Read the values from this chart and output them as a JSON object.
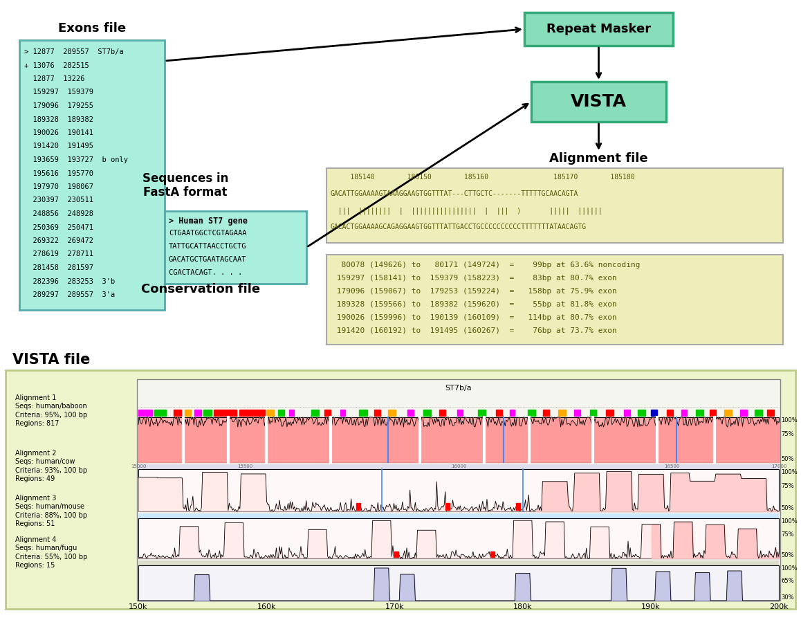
{
  "exons_title": "Exons file",
  "exons_box_color": "#aaeedd",
  "exons_lines": [
    "> 12877  289557  ST7b/a",
    "+ 13076  282515",
    "  12877  13226",
    "  159297  159379",
    "  179096  179255",
    "  189328  189382",
    "  190026  190141",
    "  191420  191495",
    "  193659  193727  b only",
    "  195616  195770",
    "  197970  198067",
    "  230397  230511",
    "  248856  248928",
    "  250369  250471",
    "  269322  269472",
    "  278619  278711",
    "  281458  281597",
    "  282396  283253  3'b",
    "  289297  289557  3'a"
  ],
  "fasta_label": "Sequences in\nFastA format",
  "fasta_box_color": "#aaeedd",
  "fasta_lines": [
    "> Human ST7 gene",
    "CTGAATGGCTCGTAGAAA",
    "TATTGCATTAACCTGCTG",
    "GACATGCTGAATAGCAAT",
    "CGACTACAGT. . . ."
  ],
  "repeat_masker_text": "Repeat Masker",
  "repeat_masker_box_color": "#88ddbb",
  "vista_text": "VISTA",
  "vista_box_color": "#88ddbb",
  "alignment_label": "Alignment file",
  "alignment_box_color": "#eeeebb",
  "alignment_lines": [
    "     185140        185150        185160                185170        185180",
    "GACATTGGAAAAGTAAAGGAAGTGGTTTAT---CTTGCTC-------TTTTTGCAACAGTA",
    "  |||  ||||||||  |  ||||||||||||||||  |  |||  )       |||||  ||||||",
    "GACACTGGAAAAGCAGAGGAAGTGGTTTATTGACCTGCCCCCCCCCCTTTTTTTATAACAGTG"
  ],
  "conservation_label": "Conservation file",
  "conservation_box_color": "#eeeebb",
  "conservation_lines": [
    "  80078 (149626) to   80171 (149724)  =    99bp at 63.6% noncoding",
    " 159297 (158141) to  159379 (158223)  =    83bp at 80.7% exon",
    " 179096 (159067) to  179253 (159224)  =   158bp at 75.9% exon",
    " 189328 (159566) to  189382 (159620)  =    55bp at 81.8% exon",
    " 190026 (159996) to  190139 (160109)  =   114bp at 80.7% exon",
    " 191420 (160192) to  191495 (160267)  =    76bp at 73.7% exon"
  ],
  "vista_file_label": "VISTA file",
  "align1_label": "Alignment 1\nSeqs: human/baboon\nCriteria: 95%, 100 bp\nRegions: 817",
  "align2_label": "Alignment 2\nSeqs: human/cow\nCriteria: 93%, 100 bp\nRegions: 49",
  "align3_label": "Alignment 3\nSeqs: human/mouse\nCriteria: 88%, 100 bp\nRegions: 51",
  "align4_label": "Alignment 4\nSeqs: human/fugu\nCriteria: 55%, 100 bp\nRegions: 15"
}
